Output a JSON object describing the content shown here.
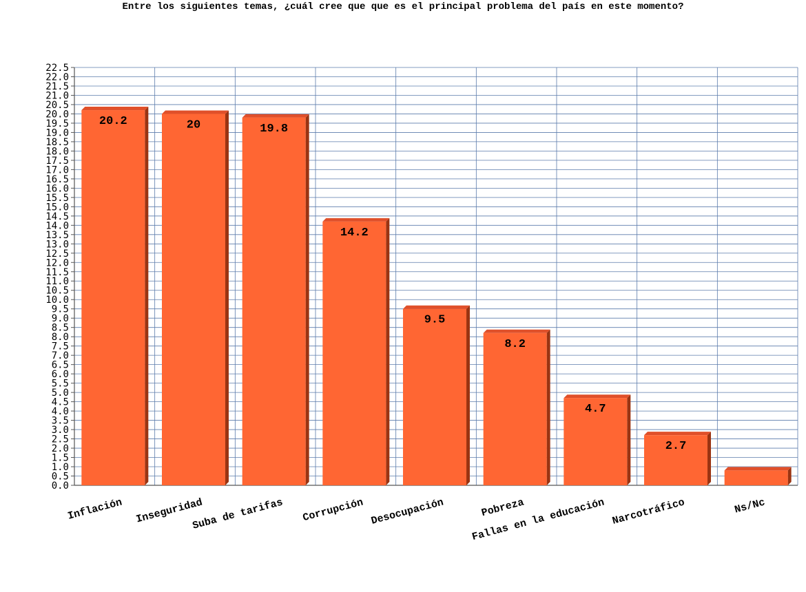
{
  "chart_data": {
    "type": "bar",
    "title": "Entre los siguientes temas, ¿cuál cree que que es el principal problema del país en este momento?",
    "categories": [
      "Inflación",
      "Inseguridad",
      "Suba de tarifas",
      "Corrupción",
      "Desocupación",
      "Pobreza",
      "Fallas en la educación",
      "Narcotráfico",
      "Ns/Nc"
    ],
    "values": [
      20.2,
      20,
      19.8,
      14.2,
      9.5,
      8.2,
      4.7,
      2.7,
      0.8
    ],
    "data_labels": [
      "20.2",
      "20",
      "19.8",
      "14.2",
      "9.5",
      "8.2",
      "4.7",
      "2.7",
      ""
    ],
    "ylim": [
      0,
      22.5
    ],
    "ytick_step": 0.5,
    "ytick_labels": [
      "0.0",
      "0.5",
      "1.0",
      "1.5",
      "2.0",
      "2.5",
      "3.0",
      "3.5",
      "4.0",
      "4.5",
      "5.0",
      "5.5",
      "6.0",
      "6.5",
      "7.0",
      "7.5",
      "8.0",
      "8.5",
      "9.0",
      "9.5",
      "10.0",
      "10.5",
      "11.0",
      "11.5",
      "12.0",
      "12.5",
      "13.0",
      "13.5",
      "14.0",
      "14.5",
      "15.0",
      "15.5",
      "16.0",
      "16.5",
      "17.0",
      "17.5",
      "18.0",
      "18.5",
      "19.0",
      "19.5",
      "20.0",
      "20.5",
      "21.0",
      "21.5",
      "22.0",
      "22.5"
    ],
    "grid": true,
    "legend": "none",
    "bar_style": "3d",
    "colors": {
      "bar_front": "#ff6633",
      "bar_top": "#e0502a",
      "bar_side": "#9a3412",
      "grid": "#5b7bab",
      "axis": "#555555"
    }
  }
}
